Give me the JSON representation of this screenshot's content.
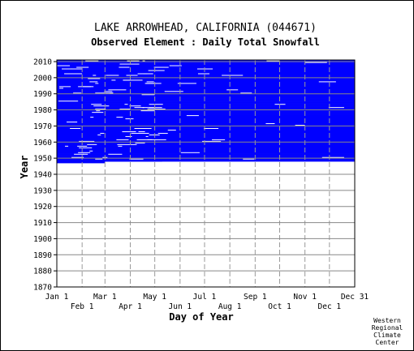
{
  "chart_data": {
    "type": "heatmap",
    "title": "LAKE ARROWHEAD, CALIFORNIA   (044671)",
    "subtitle": "Observed Element : Daily Total Snowfall",
    "xlabel": "Day of Year",
    "ylabel": "Year",
    "credit": [
      "Western",
      "Regional",
      "Climate",
      "Center"
    ],
    "x_ticks_top_row": [
      "Jan 1",
      "Mar 1",
      "May 1",
      "Jul 1",
      "Sep 1",
      "Nov 1",
      "Dec 31"
    ],
    "x_ticks_bottom_row": [
      "Feb 1",
      "Apr 1",
      "Jun 1",
      "Aug 1",
      "Oct 1",
      "Dec 1"
    ],
    "y_ticks": [
      "2010",
      "2000",
      "1990",
      "1980",
      "1970",
      "1960",
      "1950",
      "1940",
      "1930",
      "1920",
      "1910",
      "1900",
      "1890",
      "1880",
      "1870"
    ],
    "ylim": [
      1870,
      2011
    ],
    "xlim": [
      1,
      366
    ],
    "data_color": "#0000ff",
    "missing_color": "#ffffff",
    "grid": true,
    "observed_record": {
      "period_full": [
        1948,
        2009
      ],
      "partial_coverage_years": {
        "1947": [
          1,
          60
        ],
        "1948": [
          1,
          130
        ],
        "2010": [
          1,
          366
        ]
      },
      "note_missing_data": "Many isolated missing days (white) in Jan–Apr across most years, and scattered gaps in summer and fall."
    }
  }
}
